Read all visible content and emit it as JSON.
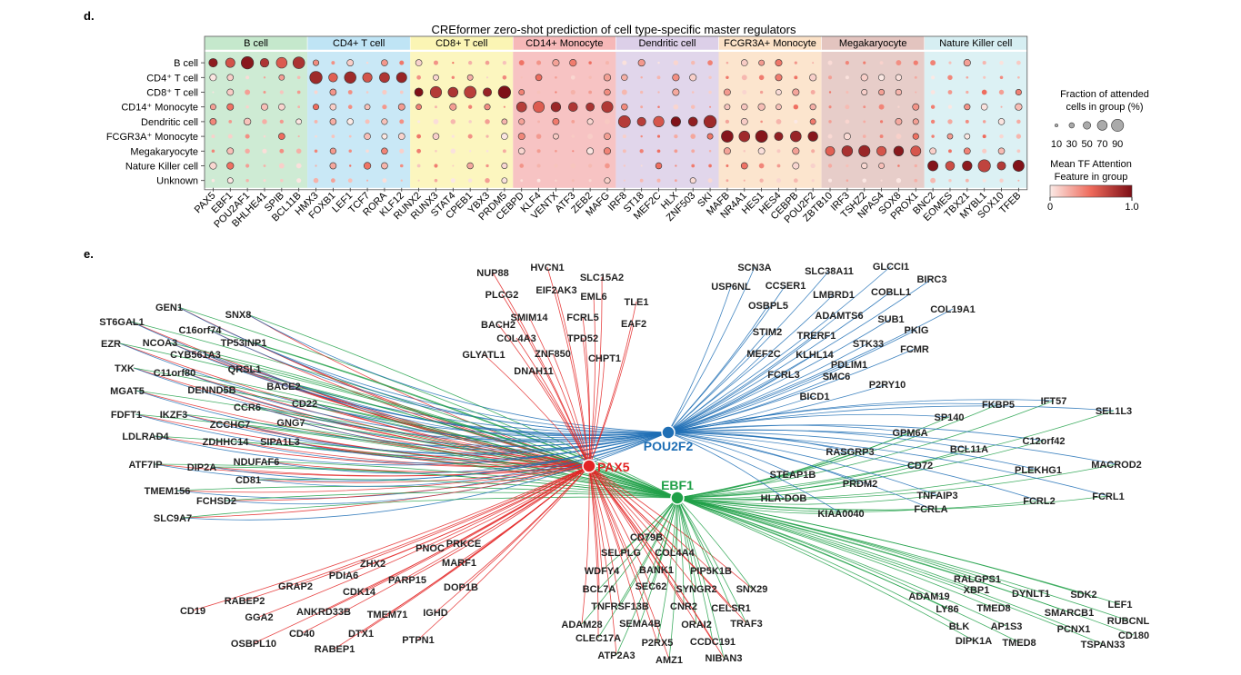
{
  "panel_d": {
    "label": "d.",
    "title": "CREformer zero-shot prediction of cell type-specific master regulators"
  },
  "panel_e": {
    "label": "e."
  },
  "legend": {
    "size_title_1": "Fraction of attended",
    "size_title_2": "cells in group (%)",
    "size_values": [
      "10",
      "30",
      "50",
      "70",
      "90"
    ],
    "color_title_1": "Mean TF Attention",
    "color_title_2": "Feature in group",
    "color_min": "0",
    "color_max": "1.0",
    "color_low": "#fbeae6",
    "color_high": "#7d0f16"
  },
  "chart_data": [
    {
      "type": "dotplot",
      "title": "CREformer zero-shot prediction of cell type-specific master regulators",
      "groups": [
        {
          "name": "B cell",
          "color": "#c5e8cc",
          "tfs": [
            "PAX5",
            "EBF1",
            "POU2AF1",
            "BHLHE41",
            "SPIB",
            "BCL11B"
          ]
        },
        {
          "name": "CD4+ T cell",
          "color": "#bfe4f5",
          "tfs": [
            "HMX3",
            "FOXB1",
            "LEF1",
            "TCF7",
            "RORA",
            "KLF12"
          ]
        },
        {
          "name": "CD8+ T cell",
          "color": "#fbf5b4",
          "tfs": [
            "RUNX2",
            "RUNX3",
            "STAT4",
            "CPEB1",
            "YBX3",
            "PRDM5"
          ]
        },
        {
          "name": "CD14+ Monocyte",
          "color": "#f6b8b8",
          "tfs": [
            "CEBPD",
            "KLF4",
            "VENTX",
            "ATF3",
            "ZEB2",
            "MAFG"
          ]
        },
        {
          "name": "Dendritic cell",
          "color": "#dccfe8",
          "tfs": [
            "IRF8",
            "ST18",
            "MEF2C",
            "HLX",
            "ZNF503",
            "SKI"
          ]
        },
        {
          "name": "FCGR3A+ Monocyte",
          "color": "#fbe1c6",
          "tfs": [
            "MAFB",
            "NR4A1",
            "HES1",
            "HES4",
            "CEBPB",
            "POU2F2"
          ]
        },
        {
          "name": "Megakaryocyte",
          "color": "#e3c4bf",
          "tfs": [
            "ZBTB10",
            "IRF3",
            "TSHZ2",
            "NPAS4",
            "SOX8",
            "PROX1"
          ]
        },
        {
          "name": "Nature Killer cell",
          "color": "#d6eef2",
          "tfs": [
            "BNC2",
            "EOMES",
            "TBX21",
            "MYBL1",
            "SOX10",
            "TFEB"
          ]
        }
      ],
      "rows": [
        "B cell",
        "CD4⁺ T cell",
        "CD8⁺ T cell",
        "CD14⁺ Monocyte",
        "Dendritic cell",
        "FCGR3A⁺ Monocyte",
        "Megakaryocyte",
        "Nature Killer cell",
        "Unknown"
      ],
      "size_legend": [
        10,
        30,
        50,
        70,
        90
      ],
      "color_range": [
        0,
        1.0
      ]
    },
    {
      "type": "network",
      "hubs": [
        {
          "name": "POU2F2",
          "color": "#1f6fb5"
        },
        {
          "name": "PAX5",
          "color": "#e32424"
        },
        {
          "name": "EBF1",
          "color": "#20a048"
        }
      ],
      "targets": {
        "left": [
          "GEN1",
          "SNX8",
          "ST6GAL1",
          "C16orf74",
          "EZR",
          "NCOA3",
          "TP53INP1",
          "CYB561A3",
          "TXK",
          "C11orf80",
          "QRSL1",
          "MGAT5",
          "DENND5B",
          "BACE2",
          "FDFT1",
          "IKZF3",
          "CCR6",
          "CD22",
          "ZCCHC7",
          "GNG7",
          "LDLRAD4",
          "ZDHHC14",
          "SIPA1L3",
          "ATF7IP",
          "DIP2A",
          "NDUFAF6",
          "TMEM156",
          "CD81",
          "FCHSD2",
          "SLC9A7"
        ],
        "top_pax5": [
          "NUP88",
          "HVCN1",
          "SLC15A2",
          "PLCG2",
          "EIF2AK3",
          "EML6",
          "TLE1",
          "BACH2",
          "SMIM14",
          "FCRL5",
          "EAF2",
          "COL4A3",
          "TPD52",
          "ZNF850",
          "GLYATL1",
          "CHPT1",
          "DNAH11"
        ],
        "top_pou2f2": [
          "SCN3A",
          "SLC38A11",
          "GLCCI1",
          "USP6NL",
          "CCSER1",
          "LMBRD1",
          "COBLL1",
          "BIRC3",
          "OSBPL5",
          "ADAMTS6",
          "SUB1",
          "COL19A1",
          "STIM2",
          "TRERF1",
          "PKIG",
          "MEF2C",
          "KLHL14",
          "STK33",
          "FCMR",
          "PDLIM1",
          "FCRL3",
          "SMC6",
          "P2RY10",
          "BICD1"
        ],
        "right": [
          "IFT57",
          "FKBP5",
          "SEL1L3",
          "SP140",
          "GPM6A",
          "C12orf42",
          "RASGRP3",
          "BCL11A",
          "MACROD2",
          "CD72",
          "PLEKHG1",
          "STEAP1B",
          "PRDM2",
          "TNFAIP3",
          "FCRL2",
          "FCRL1",
          "HLA-DOB",
          "KIAA0040",
          "FCRLA"
        ],
        "bottom_pax5": [
          "PNOC",
          "PRKCE",
          "ZHX2",
          "MARF1",
          "PDIA6",
          "PARP15",
          "GRAP2",
          "CDK14",
          "DOP1B",
          "CD19",
          "RABEP2",
          "ANKRD33B",
          "TMEM71",
          "GGA2",
          "IGHD",
          "CD40",
          "DTX1",
          "OSBPL10",
          "RABEP1",
          "PTPN1"
        ],
        "bottom_mid": [
          "CD79B",
          "SELPLG",
          "COL4A4",
          "WDFY4",
          "BANK1",
          "PIP5K1B",
          "BCL7A",
          "SEC62",
          "SYNGR2",
          "SNX29",
          "TNFRSF13B",
          "CNR2",
          "CELSR1",
          "ADAM28",
          "SEMA4B",
          "ORAI2",
          "TRAF3",
          "CLEC17A",
          "P2RX5",
          "CCDC191",
          "ATP2A3",
          "AMZ1",
          "NIBAN3"
        ],
        "bottom_right": [
          "RALGPS1",
          "ADAM19",
          "XBP1",
          "DYNLT1",
          "SDK2",
          "LY86",
          "TMED8",
          "LEF1",
          "SMARCB1",
          "RUBCNL",
          "BLK",
          "AP1S3",
          "PCNX1",
          "DIPK1A",
          "TMED8",
          "TSPAN33",
          "CD180"
        ]
      }
    }
  ]
}
